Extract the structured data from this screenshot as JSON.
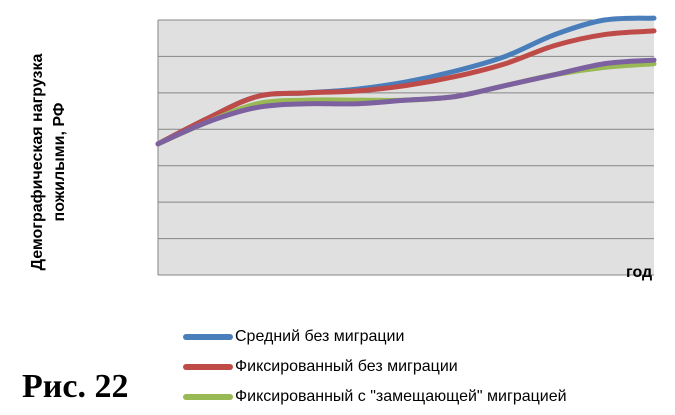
{
  "figure_caption": "Рис. 22",
  "chart_data": {
    "type": "line",
    "title": "",
    "ylabel_line1": "Демографическая нагрузка",
    "ylabel_line2": "пожилыми, РФ",
    "xlabel": "год",
    "x": [
      0,
      1,
      2,
      3,
      4,
      5,
      6,
      7,
      8,
      9,
      10
    ],
    "ylim": [
      0,
      7
    ],
    "grid": true,
    "legend_position": "bottom",
    "series": [
      {
        "name": "Средний  без миграции",
        "color": "#4a7ebb",
        "values": [
          3.6,
          4.3,
          4.9,
          5.0,
          5.1,
          5.3,
          5.6,
          6.0,
          6.6,
          7.0,
          7.05
        ]
      },
      {
        "name": "Фиксированный без миграции",
        "color": "#be4b48",
        "values": [
          3.6,
          4.3,
          4.9,
          5.0,
          5.05,
          5.2,
          5.45,
          5.8,
          6.3,
          6.6,
          6.7
        ]
      },
      {
        "name": "Фиксированный с \"замещающей\" миграцией",
        "color": "#98b954",
        "values": [
          3.6,
          4.2,
          4.7,
          4.8,
          4.8,
          4.8,
          4.9,
          5.2,
          5.5,
          5.7,
          5.8
        ]
      },
      {
        "name": "",
        "color": "#7d60a0",
        "values": [
          3.6,
          4.2,
          4.6,
          4.7,
          4.7,
          4.8,
          4.9,
          5.2,
          5.5,
          5.8,
          5.9
        ]
      }
    ]
  }
}
